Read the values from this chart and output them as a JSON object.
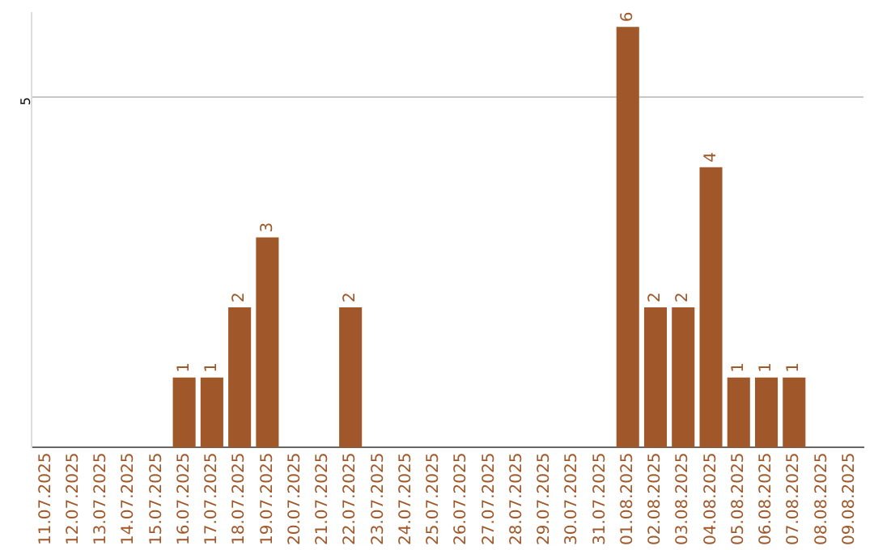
{
  "chart_data": {
    "type": "bar",
    "categories": [
      "11.07.2025",
      "12.07.2025",
      "13.07.2025",
      "14.07.2025",
      "15.07.2025",
      "16.07.2025",
      "17.07.2025",
      "18.07.2025",
      "19.07.2025",
      "20.07.2025",
      "21.07.2025",
      "22.07.2025",
      "23.07.2025",
      "24.07.2025",
      "25.07.2025",
      "26.07.2025",
      "27.07.2025",
      "28.07.2025",
      "29.07.2025",
      "30.07.2025",
      "31.07.2025",
      "01.08.2025",
      "02.08.2025",
      "03.08.2025",
      "04.08.2025",
      "05.08.2025",
      "06.08.2025",
      "07.08.2025",
      "08.08.2025",
      "09.08.2025"
    ],
    "values": [
      0,
      0,
      0,
      0,
      0,
      1,
      1,
      2,
      3,
      0,
      0,
      2,
      0,
      0,
      0,
      0,
      0,
      0,
      0,
      0,
      0,
      6,
      2,
      2,
      4,
      1,
      1,
      1,
      0,
      0
    ],
    "value_labels": [
      null,
      null,
      null,
      null,
      null,
      "1",
      "1",
      "2",
      "3",
      null,
      null,
      "2",
      null,
      null,
      null,
      null,
      null,
      null,
      null,
      null,
      null,
      "6",
      "2",
      "2",
      "4",
      "1",
      "1",
      "1",
      null,
      null
    ],
    "color": "#a0582a",
    "ylim": [
      0,
      6.2
    ],
    "yticks": [
      5
    ],
    "grid": "y",
    "legend": false
  }
}
